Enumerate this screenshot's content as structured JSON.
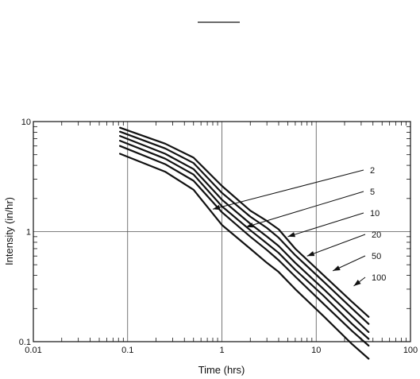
{
  "chart_data": {
    "type": "line",
    "xlabel": "Time  (hrs)",
    "ylabel": "Intensity  (in/hr)",
    "x_scale": "log",
    "y_scale": "log",
    "xlim": [
      0.01,
      100
    ],
    "ylim": [
      0.1,
      10
    ],
    "x_tick_values": [
      0.01,
      0.1,
      1,
      10,
      100
    ],
    "x_tick_labels": [
      "0.01",
      "0.1",
      "1",
      "10",
      "100"
    ],
    "y_tick_values": [
      0.1,
      1,
      10
    ],
    "y_tick_labels": [
      "0.1",
      "1",
      "10"
    ],
    "grid": "major decades",
    "x": [
      0.083,
      0.25,
      0.5,
      1,
      2,
      3,
      4,
      6,
      12,
      24,
      36
    ],
    "series": [
      {
        "label": "2",
        "values": [
          5.1,
          3.5,
          2.4,
          1.15,
          0.7,
          0.52,
          0.43,
          0.3,
          0.17,
          0.095,
          0.07
        ]
      },
      {
        "label": "5",
        "values": [
          6.0,
          4.1,
          2.9,
          1.5,
          0.9,
          0.68,
          0.55,
          0.39,
          0.22,
          0.125,
          0.092
        ]
      },
      {
        "label": "10",
        "values": [
          6.7,
          4.6,
          3.3,
          1.7,
          1.03,
          0.78,
          0.64,
          0.45,
          0.26,
          0.145,
          0.106
        ]
      },
      {
        "label": "20",
        "values": [
          7.4,
          5.1,
          3.7,
          1.95,
          1.18,
          0.9,
          0.74,
          0.52,
          0.3,
          0.17,
          0.122
        ]
      },
      {
        "label": "50",
        "values": [
          8.1,
          5.7,
          4.2,
          2.25,
          1.37,
          1.08,
          0.88,
          0.61,
          0.35,
          0.2,
          0.145
        ]
      },
      {
        "label": "100",
        "values": [
          8.8,
          6.3,
          4.7,
          2.6,
          1.55,
          1.25,
          1.05,
          0.7,
          0.4,
          0.23,
          0.168
        ]
      }
    ],
    "annotations": [
      {
        "text": "2",
        "point": [
          0.8,
          1.6
        ]
      },
      {
        "text": "5",
        "point": [
          1.8,
          1.1
        ]
      },
      {
        "text": "10",
        "point": [
          5.0,
          0.9
        ]
      },
      {
        "text": "20",
        "point": [
          8.0,
          0.6
        ]
      },
      {
        "text": "50",
        "point": [
          15.0,
          0.44
        ]
      },
      {
        "text": "100",
        "point": [
          25.0,
          0.32
        ]
      }
    ]
  }
}
